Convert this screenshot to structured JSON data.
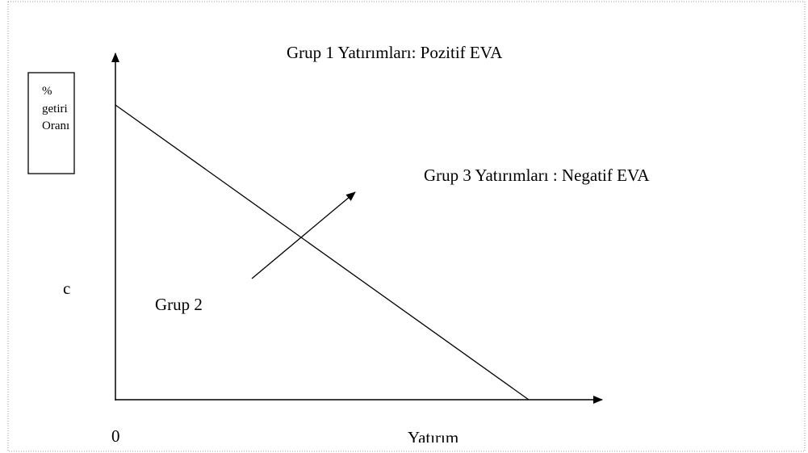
{
  "title": "Grup 1 Yatırımları: Pozitif EVA",
  "group3_label": "Grup 3 Yatırımları : Negatif EVA",
  "group2_label": "Grup 2",
  "y_axis_box": {
    "lines": [
      "%",
      "getiri",
      "Oranı"
    ]
  },
  "c_label": "c",
  "origin_label": "0",
  "x_axis_label": "Yatırım"
}
